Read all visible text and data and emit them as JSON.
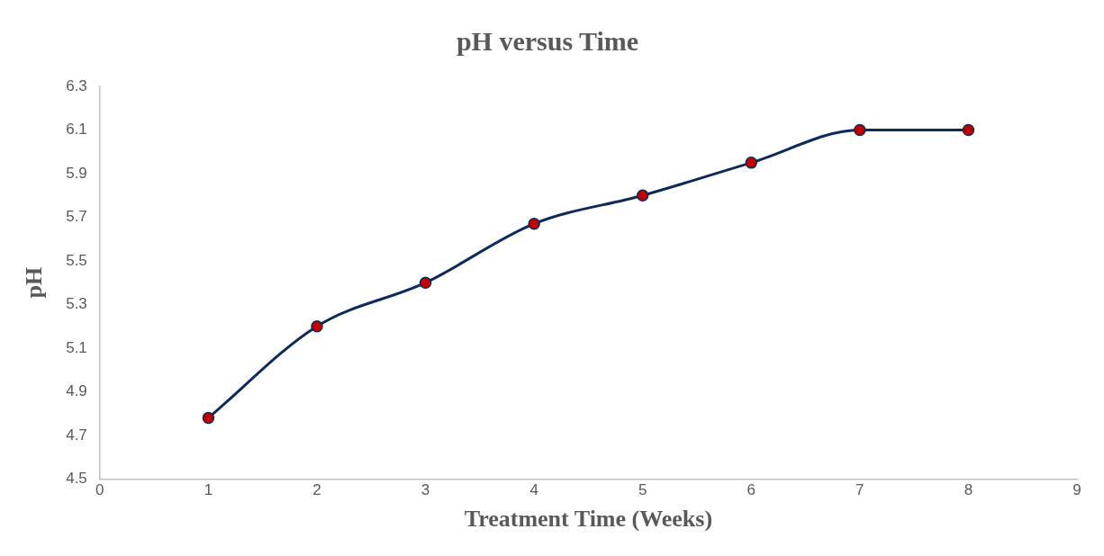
{
  "chart_data": {
    "type": "line",
    "title": "pH versus Time",
    "xlabel": "Treatment Time (Weeks)",
    "ylabel": "pH",
    "x": [
      1,
      2,
      3,
      4,
      5,
      6,
      7,
      8
    ],
    "series": [
      {
        "color": "#0d2a5c",
        "colors": [
          "#c00000",
          "#c00000",
          "#c00000",
          "#c00000",
          "#c00000",
          "#c00000",
          "#c00000",
          "#c00000"
        ],
        "values": [
          4.78,
          5.2,
          5.4,
          5.67,
          5.8,
          5.95,
          6.1,
          6.1
        ]
      }
    ],
    "xlim": [
      0,
      9
    ],
    "xticks": [
      0,
      1,
      2,
      3,
      4,
      5,
      6,
      7,
      8,
      9
    ],
    "ylim": [
      4.5,
      6.3
    ],
    "yticks": [
      4.5,
      4.7,
      4.9,
      5.1,
      5.3,
      5.5,
      5.7,
      5.9,
      6.1,
      6.3
    ],
    "grid": false,
    "legend": false,
    "marker": "circle",
    "line_style": "solid"
  }
}
